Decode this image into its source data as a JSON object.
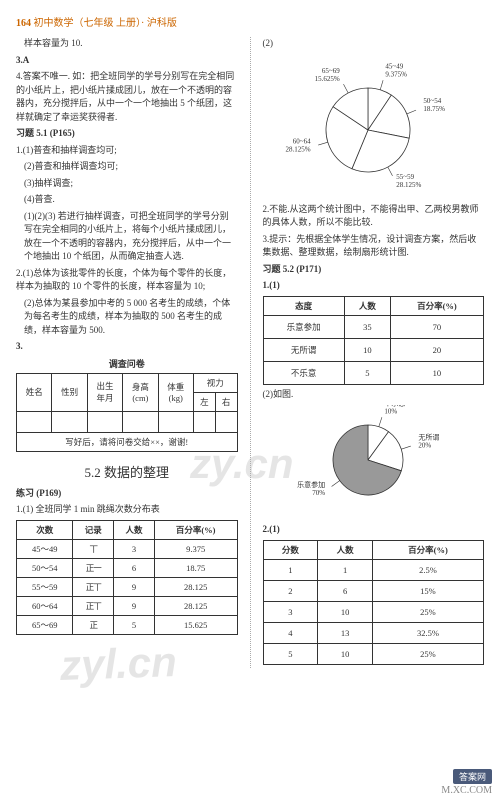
{
  "header": {
    "page_num": "164",
    "title": "初中数学（七年级 上册）· 沪科版"
  },
  "left": {
    "l1": "样本容量为 10.",
    "l2": "3.A",
    "l3": "4.答案不唯一. 如：把全班同学的学号分别写在完全相同的小纸片上，把小纸片揉成团儿，放在一个不透明的容器内，充分搅拌后，从中一个一个地抽出 5 个纸团，这样就确定了幸运奖获得者.",
    "ex51_title": "习题 5.1 (P165)",
    "ex51_1_1": "1.(1)普查和抽样调查均可;",
    "ex51_1_2": "(2)普查和抽样调查均可;",
    "ex51_1_3": "(3)抽样调查;",
    "ex51_1_4": "(4)普查.",
    "ex51_body1": "(1)(2)(3) 若进行抽样调查，可把全班同学的学号分别写在完全相同的小纸片上，将每个小纸片揉成团儿，放在一个不透明的容器内，充分搅拌后，从中一个一个地抽出 10 个纸团，从而确定抽查人选.",
    "ex51_2": "2.(1)总体为该批零件的长度，个体为每个零件的长度，样本为抽取的 10 个零件的长度，样本容量为 10;",
    "ex51_2b": "(2)总体为某县参加中考的 5 000 名考生的成绩，个体为每名考生的成绩，样本为抽取的 500 名考生的成绩，样本容量为 500.",
    "ex51_3": "3.",
    "survey_title": "调查问卷",
    "survey_cols": [
      "姓名",
      "性别",
      "出生\n年月",
      "身高\n(cm)",
      "体重\n(kg)",
      "视力"
    ],
    "survey_vision": [
      "左",
      "右"
    ],
    "survey_footer": "写好后，请将问卷交给××，谢谢!",
    "section_52": "5.2  数据的整理",
    "practice_title": "练习 (P169)",
    "p1_title": "1.(1)    全班同学 1 min 跳绳次数分布表",
    "freq_table": {
      "headers": [
        "次数",
        "记录",
        "人数",
        "百分率(%)"
      ],
      "rows": [
        {
          "range": "45～49",
          "tally": "丅",
          "count": "3",
          "pct": "9.375"
        },
        {
          "range": "50～54",
          "tally": "正一",
          "count": "6",
          "pct": "18.75"
        },
        {
          "range": "55～59",
          "tally": "正丅",
          "count": "9",
          "pct": "28.125"
        },
        {
          "range": "60～64",
          "tally": "正丅",
          "count": "9",
          "pct": "28.125"
        },
        {
          "range": "65～69",
          "tally": "正",
          "count": "5",
          "pct": "15.625"
        }
      ]
    }
  },
  "right": {
    "p2": "(2)",
    "pie1": {
      "slices": [
        {
          "label": "45~49\n9.375%",
          "pct": 9.375,
          "color": "#ffffff"
        },
        {
          "label": "50~54\n18.75%",
          "pct": 18.75,
          "color": "#ffffff"
        },
        {
          "label": "55~59\n28.125%",
          "pct": 28.125,
          "color": "#ffffff"
        },
        {
          "label": "60~64\n28.125%",
          "pct": 28.125,
          "color": "#ffffff"
        },
        {
          "label": "65~69\n15.625%",
          "pct": 15.625,
          "color": "#ffffff"
        }
      ],
      "line_color": "#333",
      "font_size": 7
    },
    "r2": "2.不能.从这两个统计图中，不能得出甲、乙两校男教师的具体人数，所以不能比较.",
    "r3": "3.提示：先根据全体学生情况，设计调查方案，然后收集数据、整理数据，绘制扇形统计图.",
    "ex52_title": "习题 5.2 (P171)",
    "ex52_1": "1.(1)",
    "attitude_table": {
      "headers": [
        "态度",
        "人数",
        "百分率(%)"
      ],
      "rows": [
        {
          "a": "乐意参加",
          "n": "35",
          "p": "70"
        },
        {
          "a": "无所谓",
          "n": "10",
          "p": "20"
        },
        {
          "a": "不乐意",
          "n": "5",
          "p": "10"
        }
      ]
    },
    "ex52_2": "(2)如图.",
    "pie2": {
      "slices": [
        {
          "label": "不乐意\n10%",
          "pct": 10,
          "color": "#ffffff"
        },
        {
          "label": "无所谓\n20%",
          "pct": 20,
          "color": "#ffffff"
        },
        {
          "label": "乐意参加\n70%",
          "pct": 70,
          "color": "#999999"
        }
      ],
      "line_color": "#333",
      "font_size": 7
    },
    "ex52_2_1": "2.(1)",
    "score_table": {
      "headers": [
        "分数",
        "人数",
        "百分率(%)"
      ],
      "rows": [
        {
          "s": "1",
          "n": "1",
          "p": "2.5%"
        },
        {
          "s": "2",
          "n": "6",
          "p": "15%"
        },
        {
          "s": "3",
          "n": "10",
          "p": "25%"
        },
        {
          "s": "4",
          "n": "13",
          "p": "32.5%"
        },
        {
          "s": "5",
          "n": "10",
          "p": "25%"
        }
      ]
    }
  },
  "watermarks": {
    "wm1": "zy.cn",
    "wm2": "zyl.cn"
  },
  "corner": {
    "badge": "答案网",
    "url": "M.XC.COM"
  }
}
